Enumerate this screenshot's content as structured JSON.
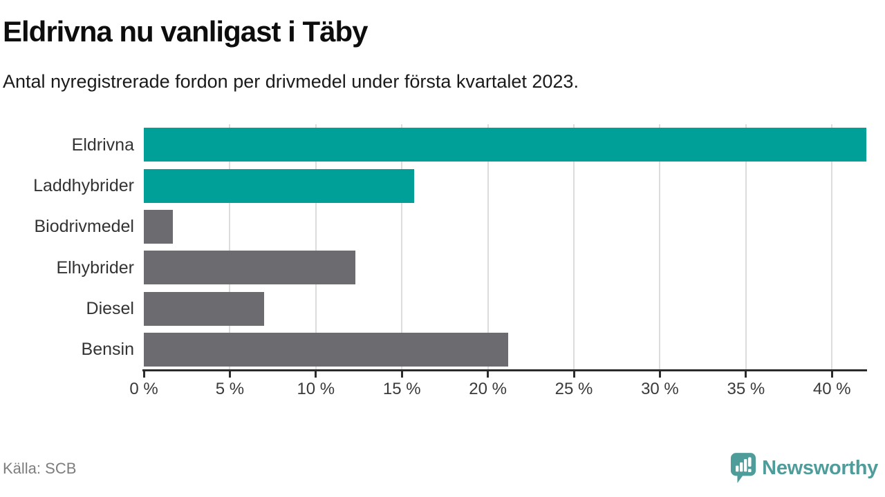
{
  "header": {
    "title": "Eldrivna nu vanligast i Täby",
    "subtitle": "Antal nyregistrerade fordon per drivmedel under första kvartalet 2023."
  },
  "chart_data": {
    "type": "bar",
    "orientation": "horizontal",
    "title": "Eldrivna nu vanligast i Täby",
    "subtitle": "Antal nyregistrerade fordon per drivmedel under första kvartalet 2023.",
    "categories": [
      "Eldrivna",
      "Laddhybrider",
      "Biodrivmedel",
      "Elhybrider",
      "Diesel",
      "Bensin"
    ],
    "values": [
      42.0,
      15.7,
      1.7,
      12.3,
      7.0,
      21.2
    ],
    "unit": "%",
    "bar_colors": [
      "#00a099",
      "#00a099",
      "#6b6b70",
      "#6b6b70",
      "#6b6b70",
      "#6b6b70"
    ],
    "xlabel": "",
    "ylabel": "",
    "xlim": [
      0,
      42
    ],
    "x_ticks": [
      0,
      5,
      10,
      15,
      20,
      25,
      30,
      35,
      40
    ],
    "x_tick_labels": [
      "0 %",
      "5 %",
      "10 %",
      "15 %",
      "20 %",
      "25 %",
      "30 %",
      "35 %",
      "40 %"
    ],
    "grid": "vertical-only",
    "legend": "none"
  },
  "footer": {
    "source": "Källa: SCB",
    "brand": "Newsworthy"
  },
  "colors": {
    "highlight": "#00a099",
    "base_gray": "#6b6b70",
    "brand_teal": "#4e9d9a",
    "gridline": "#dcdcdc",
    "axis": "#2b2b2b",
    "text": "#333333",
    "muted_text": "#7d7d7d"
  }
}
